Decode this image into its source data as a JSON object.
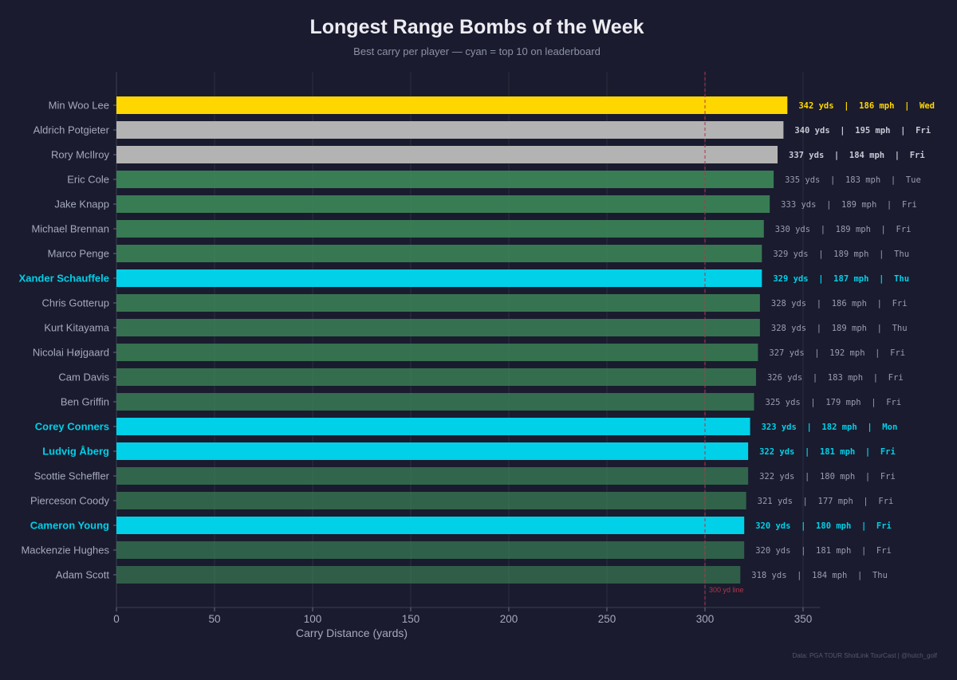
{
  "chart_data": {
    "type": "bar",
    "orientation": "horizontal",
    "title": "Longest Range Bombs of the Week",
    "subtitle": "Best carry per player — cyan = top 10 on leaderboard",
    "xlabel": "Carry Distance (yards)",
    "ylabel": "",
    "xlim": [
      0,
      360
    ],
    "xticks": [
      0,
      50,
      100,
      150,
      200,
      250,
      300,
      350
    ],
    "grid": true,
    "reference_line": {
      "value": 300,
      "label": "300 yd line"
    },
    "colors": {
      "gold": "#ffd700",
      "silver": "#b3b3b3",
      "top10": "#00d0e8",
      "default": "#3d8a5a",
      "reference": "#b5344a"
    },
    "bars": [
      {
        "player": "Min Woo Lee",
        "carry": 342,
        "mph": 186,
        "day": "Wed",
        "label": "342 yds  |  186 mph  |  Wed",
        "highlight": "gold"
      },
      {
        "player": "Aldrich Potgieter",
        "carry": 340,
        "mph": 195,
        "day": "Fri",
        "label": "340 yds  |  195 mph  |  Fri",
        "highlight": "silver"
      },
      {
        "player": "Rory McIlroy",
        "carry": 337,
        "mph": 184,
        "day": "Fri",
        "label": "337 yds  |  184 mph  |  Fri",
        "highlight": "silver"
      },
      {
        "player": "Eric Cole",
        "carry": 335,
        "mph": 183,
        "day": "Tue",
        "label": "335 yds  |  183 mph  |  Tue",
        "highlight": "none"
      },
      {
        "player": "Jake Knapp",
        "carry": 333,
        "mph": 189,
        "day": "Fri",
        "label": "333 yds  |  189 mph  |  Fri",
        "highlight": "none"
      },
      {
        "player": "Michael Brennan",
        "carry": 330,
        "mph": 189,
        "day": "Fri",
        "label": "330 yds  |  189 mph  |  Fri",
        "highlight": "none"
      },
      {
        "player": "Marco Penge",
        "carry": 329,
        "mph": 189,
        "day": "Thu",
        "label": "329 yds  |  189 mph  |  Thu",
        "highlight": "none"
      },
      {
        "player": "Xander Schauffele",
        "carry": 329,
        "mph": 187,
        "day": "Thu",
        "label": "329 yds  |  187 mph  |  Thu",
        "highlight": "top10"
      },
      {
        "player": "Chris Gotterup",
        "carry": 328,
        "mph": 186,
        "day": "Fri",
        "label": "328 yds  |  186 mph  |  Fri",
        "highlight": "none"
      },
      {
        "player": "Kurt Kitayama",
        "carry": 328,
        "mph": 189,
        "day": "Thu",
        "label": "328 yds  |  189 mph  |  Thu",
        "highlight": "none"
      },
      {
        "player": "Nicolai Højgaard",
        "carry": 327,
        "mph": 192,
        "day": "Fri",
        "label": "327 yds  |  192 mph  |  Fri",
        "highlight": "none"
      },
      {
        "player": "Cam Davis",
        "carry": 326,
        "mph": 183,
        "day": "Fri",
        "label": "326 yds  |  183 mph  |  Fri",
        "highlight": "none"
      },
      {
        "player": "Ben Griffin",
        "carry": 325,
        "mph": 179,
        "day": "Fri",
        "label": "325 yds  |  179 mph  |  Fri",
        "highlight": "none"
      },
      {
        "player": "Corey Conners",
        "carry": 323,
        "mph": 182,
        "day": "Mon",
        "label": "323 yds  |  182 mph  |  Mon",
        "highlight": "top10"
      },
      {
        "player": "Ludvig Åberg",
        "carry": 322,
        "mph": 181,
        "day": "Fri",
        "label": "322 yds  |  181 mph  |  Fri",
        "highlight": "top10"
      },
      {
        "player": "Scottie Scheffler",
        "carry": 322,
        "mph": 180,
        "day": "Fri",
        "label": "322 yds  |  180 mph  |  Fri",
        "highlight": "none"
      },
      {
        "player": "Pierceson Coody",
        "carry": 321,
        "mph": 177,
        "day": "Fri",
        "label": "321 yds  |  177 mph  |  Fri",
        "highlight": "none"
      },
      {
        "player": "Cameron Young",
        "carry": 320,
        "mph": 180,
        "day": "Fri",
        "label": "320 yds  |  180 mph  |  Fri",
        "highlight": "top10"
      },
      {
        "player": "Mackenzie Hughes",
        "carry": 320,
        "mph": 181,
        "day": "Fri",
        "label": "320 yds  |  181 mph  |  Fri",
        "highlight": "none"
      },
      {
        "player": "Adam Scott",
        "carry": 318,
        "mph": 184,
        "day": "Thu",
        "label": "318 yds  |  184 mph  |  Thu",
        "highlight": "none"
      }
    ],
    "footer": "Data: PGA TOUR ShotLink TourCast  |  @hutch_golf"
  }
}
